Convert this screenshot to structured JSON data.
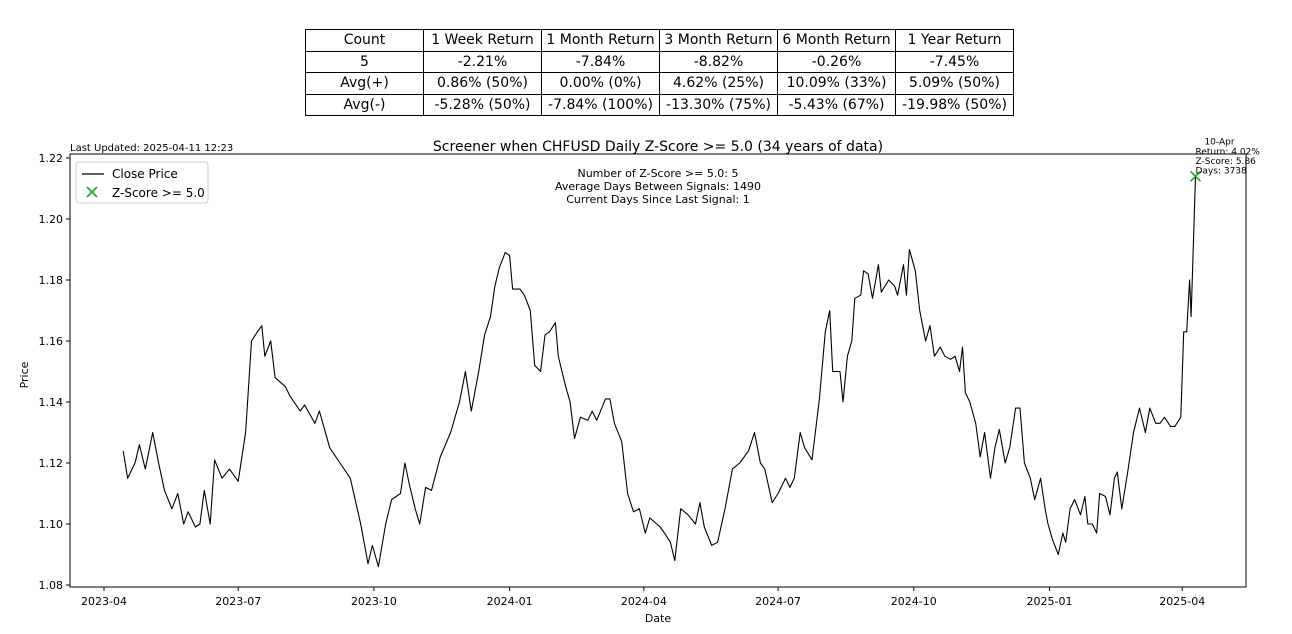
{
  "stats_table": {
    "header": [
      "Count",
      "1 Week Return",
      "1 Month Return",
      "3 Month Return",
      "6 Month Return",
      "1 Year Return"
    ],
    "rows": [
      [
        "5",
        "-2.21%",
        "-7.84%",
        "-8.82%",
        "-0.26%",
        "-7.45%"
      ],
      [
        "Avg(+)",
        "0.86% (50%)",
        "0.00% (0%)",
        "4.62% (25%)",
        "10.09% (33%)",
        "5.09% (50%)"
      ],
      [
        "Avg(-)",
        "-5.28% (50%)",
        "-7.84% (100%)",
        "-13.30% (75%)",
        "-5.43% (67%)",
        "-19.98% (50%)"
      ]
    ]
  },
  "chart_data": {
    "type": "line",
    "title": "Screener when CHFUSD Daily Z-Score >= 5.0 (34 years of data)",
    "last_updated": "Last Updated: 2025-04-11 12:23",
    "xlabel": "Date",
    "ylabel": "Price",
    "x_origin_date": "2023-04-01",
    "x_unit": "days since origin",
    "xlim": [
      -22,
      770
    ],
    "ylim": [
      1.08,
      1.22
    ],
    "yticks": [
      1.08,
      1.1,
      1.12,
      1.14,
      1.16,
      1.18,
      1.2,
      1.22
    ],
    "ytick_labels": [
      "1.08",
      "1.10",
      "1.12",
      "1.14",
      "1.16",
      "1.18",
      "1.20",
      "1.22"
    ],
    "xticks": [
      0,
      91,
      183,
      275,
      366,
      457,
      549,
      641,
      731
    ],
    "xtick_labels": [
      "2023-04",
      "2023-07",
      "2023-10",
      "2024-01",
      "2024-04",
      "2024-07",
      "2024-10",
      "2025-01",
      "2025-04"
    ],
    "legend": {
      "placement": "upper-left",
      "entries": [
        "Close Price",
        "Z-Score >= 5.0"
      ]
    },
    "info_lines": [
      "Number of Z-Score >= 5.0: 5",
      "Average Days Between Signals: 1490",
      "Current Days Since Last Signal: 1"
    ],
    "colors": {
      "line": "#000000",
      "marker": "#2ca02c"
    },
    "series": [
      {
        "name": "Close Price",
        "x": [
          13,
          16,
          21,
          24,
          28,
          33,
          37,
          41,
          46,
          50,
          54,
          57,
          62,
          65,
          68,
          72,
          75,
          80,
          85,
          91,
          96,
          100,
          104,
          107,
          109,
          113,
          116,
          123,
          126,
          133,
          136,
          143,
          146,
          153,
          160,
          167,
          174,
          179,
          182,
          186,
          191,
          195,
          201,
          204,
          207,
          211,
          214,
          218,
          222,
          228,
          235,
          241,
          245,
          249,
          254,
          258,
          262,
          265,
          268,
          272,
          275,
          277,
          282,
          285,
          289,
          292,
          296,
          299,
          302,
          306,
          308,
          313,
          316,
          319,
          323,
          328,
          331,
          334,
          340,
          343,
          346,
          351,
          355,
          359,
          363,
          367,
          370,
          377,
          380,
          384,
          387,
          391,
          396,
          401,
          404,
          407,
          412,
          416,
          421,
          426,
          431,
          437,
          441,
          445,
          448,
          453,
          457,
          462,
          465,
          468,
          472,
          475,
          480,
          485,
          489,
          492,
          494,
          499,
          501,
          504,
          507,
          509,
          513,
          515,
          518,
          521,
          525,
          527,
          532,
          536,
          538,
          542,
          544,
          546,
          550,
          553,
          557,
          560,
          563,
          567,
          570,
          574,
          577,
          580,
          582,
          584,
          587,
          591,
          594,
          597,
          601,
          604,
          607,
          611,
          614,
          618,
          621,
          624,
          628,
          631,
          635,
          638,
          640,
          643,
          647,
          650,
          652,
          655,
          658,
          662,
          665,
          667,
          670,
          673,
          675,
          679,
          682,
          685,
          687,
          690,
          694,
          698,
          702,
          706,
          709,
          713,
          716,
          719,
          723,
          726,
          730,
          732,
          734,
          736,
          737,
          740
        ],
        "y": [
          1.124,
          1.115,
          1.12,
          1.126,
          1.118,
          1.13,
          1.12,
          1.111,
          1.105,
          1.11,
          1.1,
          1.104,
          1.099,
          1.1,
          1.111,
          1.1,
          1.121,
          1.115,
          1.118,
          1.114,
          1.13,
          1.16,
          1.163,
          1.165,
          1.155,
          1.16,
          1.148,
          1.145,
          1.142,
          1.137,
          1.139,
          1.133,
          1.137,
          1.125,
          1.12,
          1.115,
          1.1,
          1.087,
          1.093,
          1.086,
          1.1,
          1.108,
          1.11,
          1.12,
          1.113,
          1.105,
          1.1,
          1.112,
          1.111,
          1.122,
          1.13,
          1.14,
          1.15,
          1.137,
          1.15,
          1.162,
          1.168,
          1.178,
          1.184,
          1.189,
          1.188,
          1.177,
          1.177,
          1.175,
          1.17,
          1.152,
          1.15,
          1.162,
          1.163,
          1.166,
          1.155,
          1.145,
          1.14,
          1.128,
          1.135,
          1.134,
          1.137,
          1.134,
          1.141,
          1.141,
          1.133,
          1.127,
          1.11,
          1.104,
          1.105,
          1.097,
          1.102,
          1.099,
          1.097,
          1.094,
          1.088,
          1.105,
          1.103,
          1.1,
          1.107,
          1.099,
          1.093,
          1.094,
          1.105,
          1.118,
          1.12,
          1.124,
          1.13,
          1.12,
          1.118,
          1.107,
          1.11,
          1.115,
          1.112,
          1.115,
          1.13,
          1.125,
          1.121,
          1.141,
          1.163,
          1.17,
          1.15,
          1.15,
          1.14,
          1.155,
          1.16,
          1.174,
          1.175,
          1.183,
          1.182,
          1.174,
          1.185,
          1.176,
          1.18,
          1.178,
          1.175,
          1.185,
          1.175,
          1.19,
          1.183,
          1.17,
          1.16,
          1.165,
          1.155,
          1.158,
          1.155,
          1.154,
          1.155,
          1.15,
          1.158,
          1.143,
          1.14,
          1.133,
          1.122,
          1.13,
          1.115,
          1.125,
          1.131,
          1.12,
          1.125,
          1.138,
          1.138,
          1.12,
          1.115,
          1.108,
          1.115,
          1.105,
          1.1,
          1.095,
          1.09,
          1.097,
          1.094,
          1.105,
          1.108,
          1.103,
          1.109,
          1.1,
          1.1,
          1.097,
          1.11,
          1.109,
          1.103,
          1.115,
          1.117,
          1.105,
          1.117,
          1.13,
          1.138,
          1.13,
          1.138,
          1.133,
          1.133,
          1.135,
          1.132,
          1.132,
          1.135,
          1.163,
          1.163,
          1.18,
          1.168,
          1.214
        ]
      }
    ],
    "signals": [
      {
        "x": 740,
        "y": 1.214,
        "label_date": "10-Apr",
        "label_lines": [
          "Return: 4.02%",
          "Z-Score: 5.86",
          "Days: 3738"
        ]
      }
    ]
  }
}
